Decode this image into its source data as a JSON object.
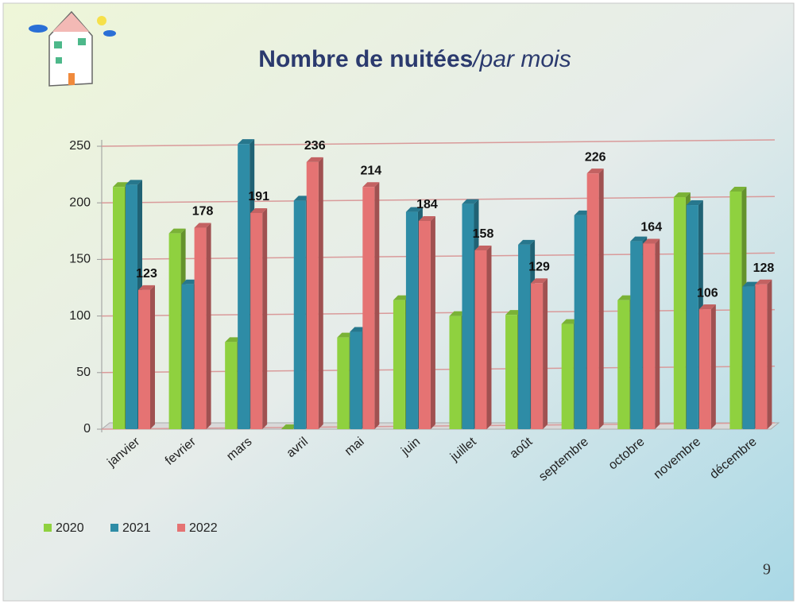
{
  "chart_data": {
    "type": "bar3d",
    "title": "Nombre de nuitées",
    "subtitle": "/par mois",
    "page_number": "9",
    "categories": [
      "janvier",
      "fevrier",
      "mars",
      "avril",
      "mai",
      "juin",
      "juillet",
      "août",
      "septembre",
      "octobre",
      "novembre",
      "décembre"
    ],
    "series": [
      {
        "name": "2020",
        "color": "#8fd13f",
        "values": [
          214,
          173,
          77,
          0,
          81,
          114,
          100,
          101,
          93,
          114,
          205,
          210
        ]
      },
      {
        "name": "2021",
        "color": "#2e8ca6",
        "values": [
          216,
          128,
          252,
          202,
          86,
          192,
          199,
          163,
          189,
          166,
          198,
          126
        ]
      },
      {
        "name": "2022",
        "color": "#e57373",
        "values": [
          123,
          178,
          191,
          236,
          214,
          184,
          158,
          129,
          226,
          164,
          106,
          128
        ],
        "data_labels": true
      }
    ],
    "ylim": [
      0,
      250
    ],
    "yticks": [
      0,
      50,
      100,
      150,
      200,
      250
    ],
    "grid": true,
    "legend": "bottom-left"
  }
}
